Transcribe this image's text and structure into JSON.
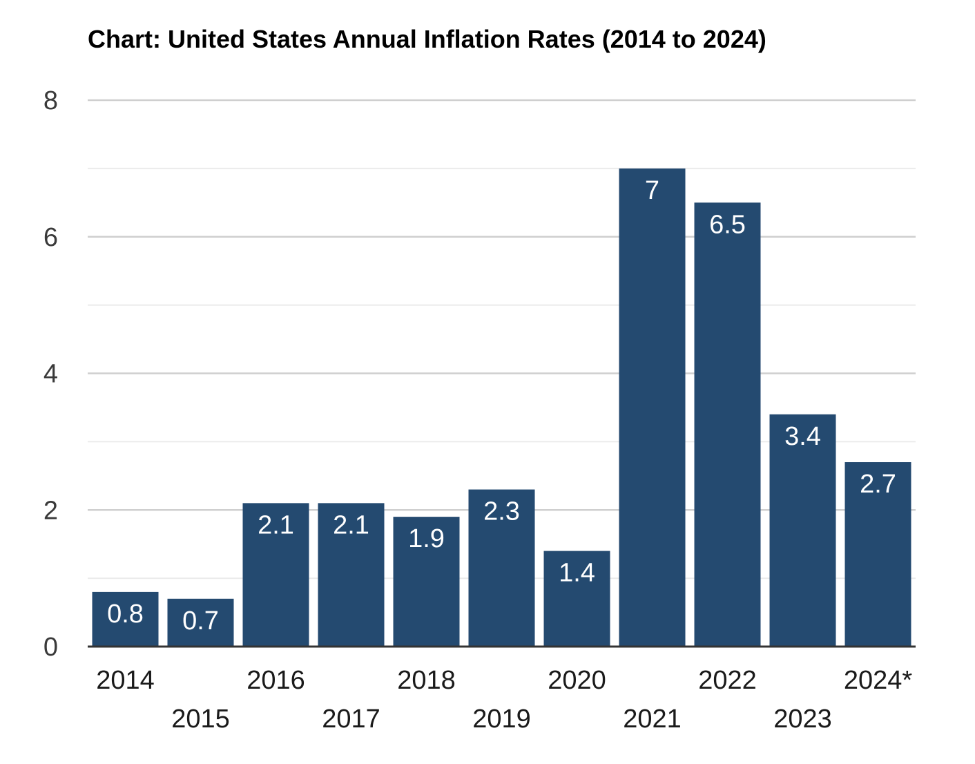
{
  "chart_data": {
    "type": "bar",
    "title": "Chart: United States Annual Inflation Rates (2014 to 2024)",
    "xlabel": "",
    "ylabel": "",
    "categories": [
      "2014",
      "2015",
      "2016",
      "2017",
      "2018",
      "2019",
      "2020",
      "2021",
      "2022",
      "2023",
      "2024*"
    ],
    "values": [
      0.8,
      0.7,
      2.1,
      2.1,
      1.9,
      2.3,
      1.4,
      7,
      6.5,
      3.4,
      2.7
    ],
    "value_labels": [
      "0.8",
      "0.7",
      "2.1",
      "2.1",
      "1.9",
      "2.3",
      "1.4",
      "7",
      "6.5",
      "3.4",
      "2.7"
    ],
    "ylim": [
      0,
      8
    ],
    "yticks": [
      "0",
      "2",
      "4",
      "6",
      "8"
    ],
    "grid": true,
    "legend": "none",
    "bar_color": "#244a70"
  }
}
